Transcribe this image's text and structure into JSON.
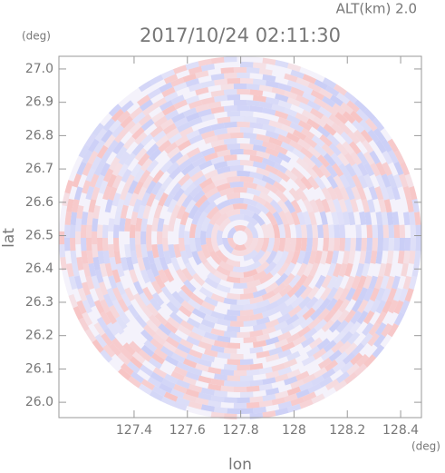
{
  "chart_data": {
    "type": "ppi",
    "title": "2017/10/24 02:11:30",
    "subtitle": "ALT(km) 2.0",
    "x_label": "lon",
    "x_unit": "(deg)",
    "y_label": "lat",
    "y_unit": "(deg)",
    "xlim": [
      127.118,
      128.478
    ],
    "ylim": [
      25.954,
      27.038
    ],
    "xticks": [
      127.4,
      127.6,
      127.8,
      128.0,
      128.2,
      128.4
    ],
    "yticks": [
      {
        "value": 26.0,
        "label": "26.0"
      },
      26.1,
      26.2,
      26.3,
      26.4,
      26.5,
      26.6,
      26.7,
      26.8,
      26.9,
      {
        "value": 27.0,
        "label": "27.0"
      }
    ]
  }
}
